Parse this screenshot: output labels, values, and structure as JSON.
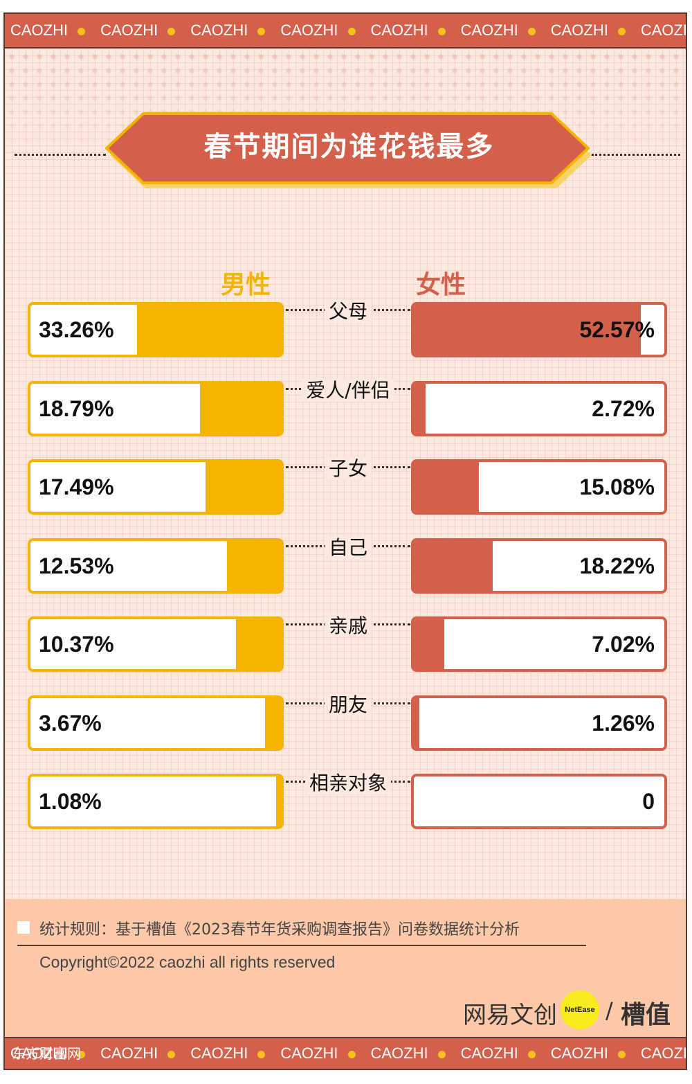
{
  "band": {
    "text": "CAOZHI",
    "repeat": 8,
    "bottom_overlay": "东方财富网"
  },
  "title": "春节期间为谁花钱最多",
  "colors": {
    "male": "#f4b400",
    "female": "#d45f4b",
    "band": "#d45f4b",
    "bg": "#fbe9df",
    "footer": "#fcc8a8"
  },
  "chart_data": {
    "type": "bar",
    "title": "春节期间为谁花钱最多",
    "categories": [
      "父母",
      "爱人/伴侣",
      "子女",
      "自己",
      "亲戚",
      "朋友",
      "相亲对象"
    ],
    "series": [
      {
        "name": "男性",
        "values": [
          33.26,
          18.79,
          17.49,
          12.53,
          10.37,
          3.67,
          1.08
        ],
        "labels": [
          "33.26%",
          "18.79%",
          "17.49%",
          "12.53%",
          "10.37%",
          "3.67%",
          "1.08%"
        ]
      },
      {
        "name": "女性",
        "values": [
          52.57,
          2.72,
          15.08,
          18.22,
          7.02,
          1.26,
          0
        ],
        "labels": [
          "52.57%",
          "2.72%",
          "15.08%",
          "18.22%",
          "7.02%",
          "1.26%",
          "0"
        ]
      }
    ],
    "unit": "%",
    "xlim": [
      0,
      58
    ],
    "legend": "top"
  },
  "footer": {
    "note": "统计规则：基于槽值《2023春节年货采购调查报告》问卷数据统计分析",
    "copyright": "Copyright©2022 caozhi all rights reserved",
    "brand_netease": "网易文创",
    "netease_badge": "NetEase",
    "slash": "/",
    "brand_caozhi": "槽值"
  }
}
